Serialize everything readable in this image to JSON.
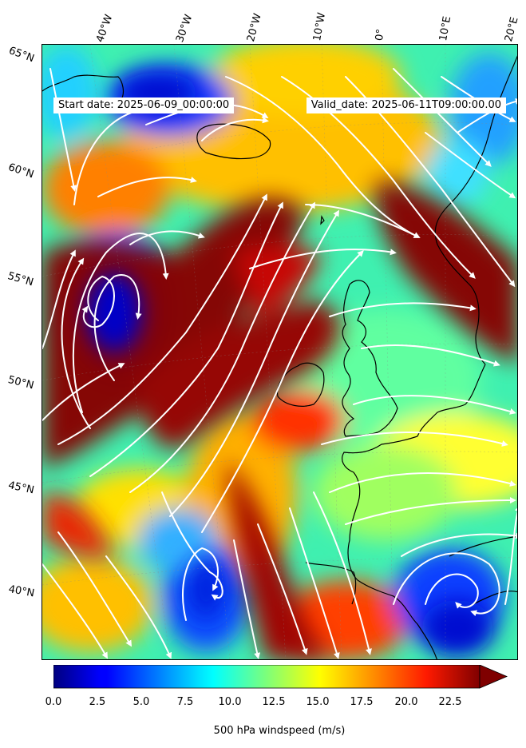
{
  "header": {
    "start_date": "Start date: 2025-06-09_00:00:00",
    "valid_date": "Valid_date: 2025-06-11T09:00:00.00"
  },
  "longitude_labels": [
    "40°W",
    "30°W",
    "20°W",
    "10°W",
    "0°",
    "10°E",
    "20°E"
  ],
  "latitude_labels": [
    "65°N",
    "60°N",
    "55°N",
    "50°N",
    "45°N",
    "40°N"
  ],
  "colorbar": {
    "label": "500 hPa windspeed (m/s)",
    "ticks": [
      "0.0",
      "2.5",
      "5.0",
      "7.5",
      "10.0",
      "12.5",
      "15.0",
      "17.5",
      "20.0",
      "22.5"
    ],
    "range": [
      0,
      25
    ],
    "colormap": "jet",
    "extend": "max"
  },
  "map": {
    "variable": "500 hPa windspeed",
    "units": "m/s",
    "streamline_color": "#ffffff",
    "coastline_color": "#000000"
  }
}
